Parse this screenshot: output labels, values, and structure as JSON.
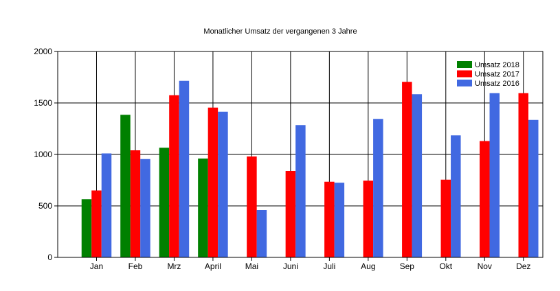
{
  "chart_data": {
    "type": "bar",
    "title": "Monatlicher Umsatz der vergangenen 3 Jahre",
    "xlabel": "",
    "ylabel": "",
    "ylim": [
      0,
      2000
    ],
    "yticks": [
      "0",
      "500",
      "1000",
      "1500",
      "2000"
    ],
    "ytick_values": [
      0,
      500,
      1000,
      1500,
      2000
    ],
    "grid": true,
    "legend_position": "top-right",
    "categories": [
      "Jan",
      "Feb",
      "Mrz",
      "April",
      "Mai",
      "Juni",
      "Juli",
      "Aug",
      "Sep",
      "Okt",
      "Nov",
      "Dez"
    ],
    "series": [
      {
        "name": "Umsatz 2018",
        "color": "#008000",
        "values": [
          565,
          1385,
          1065,
          960,
          null,
          null,
          null,
          null,
          null,
          null,
          null,
          null
        ]
      },
      {
        "name": "Umsatz 2017",
        "color": "#ff0000",
        "values": [
          650,
          1040,
          1575,
          1455,
          980,
          840,
          735,
          745,
          1705,
          755,
          1130,
          1595
        ]
      },
      {
        "name": "Umsatz 2016",
        "color": "#4169e1",
        "values": [
          1010,
          955,
          1715,
          1415,
          460,
          1285,
          725,
          1345,
          1585,
          1185,
          1595,
          1335
        ]
      }
    ]
  }
}
